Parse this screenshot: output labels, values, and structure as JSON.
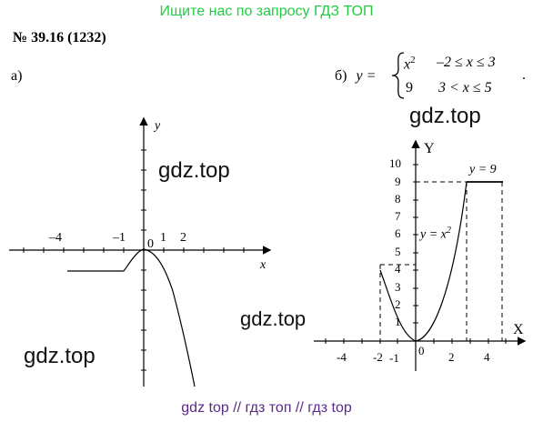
{
  "banner": "Ищите нас по запросу ГДЗ ТОП",
  "title": "№ 39.16 (1232)",
  "part_a": {
    "label": "а)",
    "axis_x": "x",
    "axis_y": "y",
    "ticks": [
      "–4",
      "–1",
      "0",
      "1",
      "2"
    ]
  },
  "part_b": {
    "label": "б)",
    "y_eq": "y =",
    "case1_expr": "x",
    "case1_exp": "2",
    "case1_cond": "–2 ≤ x ≤ 3",
    "case2_expr": "9",
    "case2_cond": "3 < x ≤ 5",
    "period": ".",
    "axis_x": "X",
    "axis_y": "Y",
    "yticks": [
      "10",
      "9",
      "8",
      "7",
      "6",
      "5",
      "4",
      "3",
      "2",
      "1"
    ],
    "xticks": [
      "-4",
      "-2",
      "-1",
      "0",
      "2",
      "4"
    ],
    "label_line": "y = 9",
    "label_parabola": "y = x",
    "label_parabola_exp": "2"
  },
  "watermarks": [
    "gdz.top",
    "gdz.top",
    "gdz.top",
    "gdz.top"
  ],
  "footer": "gdz top  //  гдз топ  //  гдз top"
}
